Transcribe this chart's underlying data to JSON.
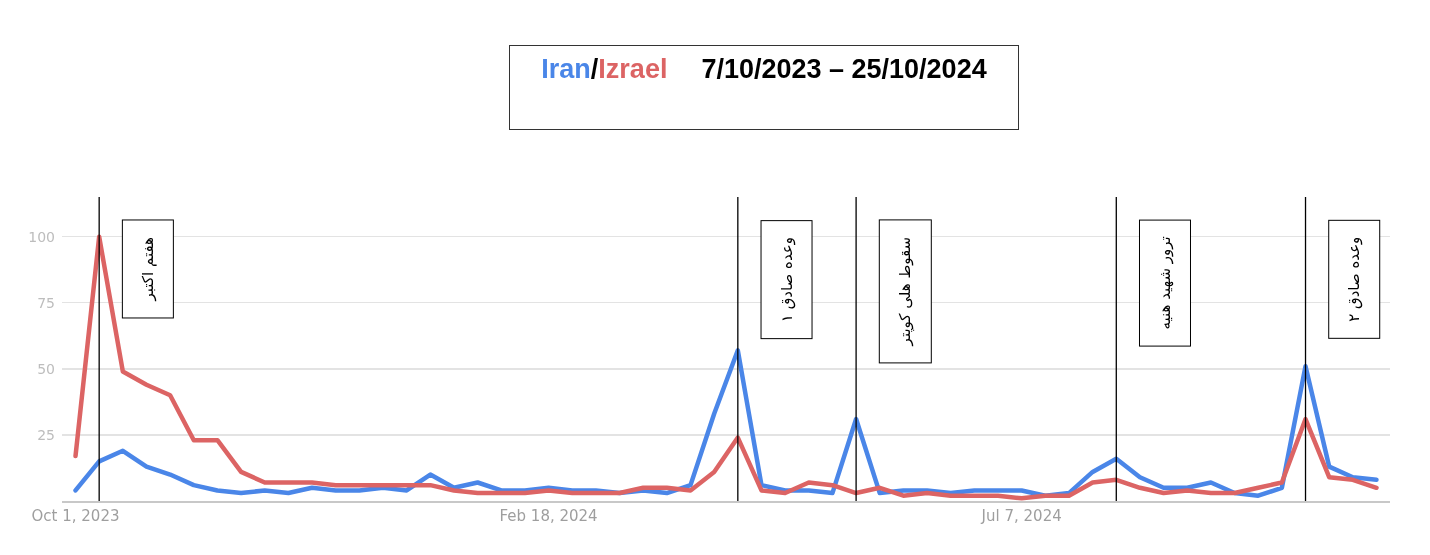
{
  "chart_data": {
    "type": "line",
    "title": "7/10/2023 – 25/10/2024",
    "annotations": [
      "/"
    ],
    "x": [
      "2023-10-01",
      "2023-10-08",
      "2023-10-15",
      "2023-10-22",
      "2023-10-29",
      "2023-11-05",
      "2023-11-12",
      "2023-11-19",
      "2023-11-26",
      "2023-12-03",
      "2023-12-10",
      "2023-12-17",
      "2023-12-24",
      "2023-12-31",
      "2024-01-07",
      "2024-01-14",
      "2024-01-21",
      "2024-01-28",
      "2024-02-04",
      "2024-02-11",
      "2024-02-18",
      "2024-02-25",
      "2024-03-03",
      "2024-03-10",
      "2024-03-17",
      "2024-03-24",
      "2024-03-31",
      "2024-04-07",
      "2024-04-14",
      "2024-04-21",
      "2024-04-28",
      "2024-05-05",
      "2024-05-12",
      "2024-05-19",
      "2024-05-26",
      "2024-06-02",
      "2024-06-09",
      "2024-06-16",
      "2024-06-23",
      "2024-06-30",
      "2024-07-07",
      "2024-07-14",
      "2024-07-21",
      "2024-07-28",
      "2024-08-04",
      "2024-08-11",
      "2024-08-18",
      "2024-08-25",
      "2024-09-01",
      "2024-09-08",
      "2024-09-15",
      "2024-09-22",
      "2024-09-29",
      "2024-10-06",
      "2024-10-13",
      "2024-10-20"
    ],
    "series": [
      {
        "name": "Iran",
        "color": "#4a86e8",
        "values": [
          4,
          15,
          19,
          13,
          10,
          6,
          4,
          3,
          4,
          3,
          5,
          4,
          4,
          5,
          4,
          10,
          5,
          7,
          4,
          4,
          5,
          4,
          4,
          3,
          4,
          3,
          6,
          33,
          57,
          6,
          4,
          4,
          3,
          31,
          3,
          4,
          4,
          3,
          4,
          4,
          4,
          2,
          3,
          11,
          16,
          9,
          5,
          5,
          7,
          3,
          2,
          5,
          51,
          13,
          9,
          8
        ]
      },
      {
        "name": "Izrael",
        "color": "#dc6464",
        "values": [
          17,
          100,
          49,
          44,
          40,
          23,
          23,
          11,
          7,
          7,
          7,
          6,
          6,
          6,
          6,
          6,
          4,
          3,
          3,
          3,
          4,
          3,
          3,
          3,
          5,
          5,
          4,
          11,
          24,
          4,
          3,
          7,
          6,
          3,
          5,
          2,
          3,
          2,
          2,
          2,
          1,
          2,
          2,
          7,
          8,
          5,
          3,
          4,
          3,
          3,
          5,
          7,
          31,
          9,
          8,
          5
        ]
      }
    ],
    "xlim": [
      "2023-09-27",
      "2024-10-24"
    ],
    "xticks": [
      {
        "value": "2023-10-01",
        "label": "Oct 1, 2023"
      },
      {
        "value": "2024-02-18",
        "label": "Feb 18, 2024"
      },
      {
        "value": "2024-07-07",
        "label": "Jul 7, 2024"
      }
    ],
    "ylim": [
      0,
      115
    ],
    "yticks": [
      25,
      50,
      75,
      100
    ],
    "grid": "y",
    "ref_lines": [
      {
        "axis": "x",
        "value": "2023-10-08",
        "label": "هفتم اکتبر",
        "color": "#000000"
      },
      {
        "axis": "x",
        "value": "2024-04-14",
        "label": "وعده صادق ۱",
        "color": "#000000"
      },
      {
        "axis": "x",
        "value": "2024-05-19",
        "label": "سقوط هلی کوپتر",
        "color": "#000000"
      },
      {
        "axis": "x",
        "value": "2024-08-04",
        "label": "ترور شهید هنیه",
        "color": "#000000"
      },
      {
        "axis": "x",
        "value": "2024-09-29",
        "label": "وعده صادق ۲",
        "color": "#000000"
      }
    ]
  }
}
